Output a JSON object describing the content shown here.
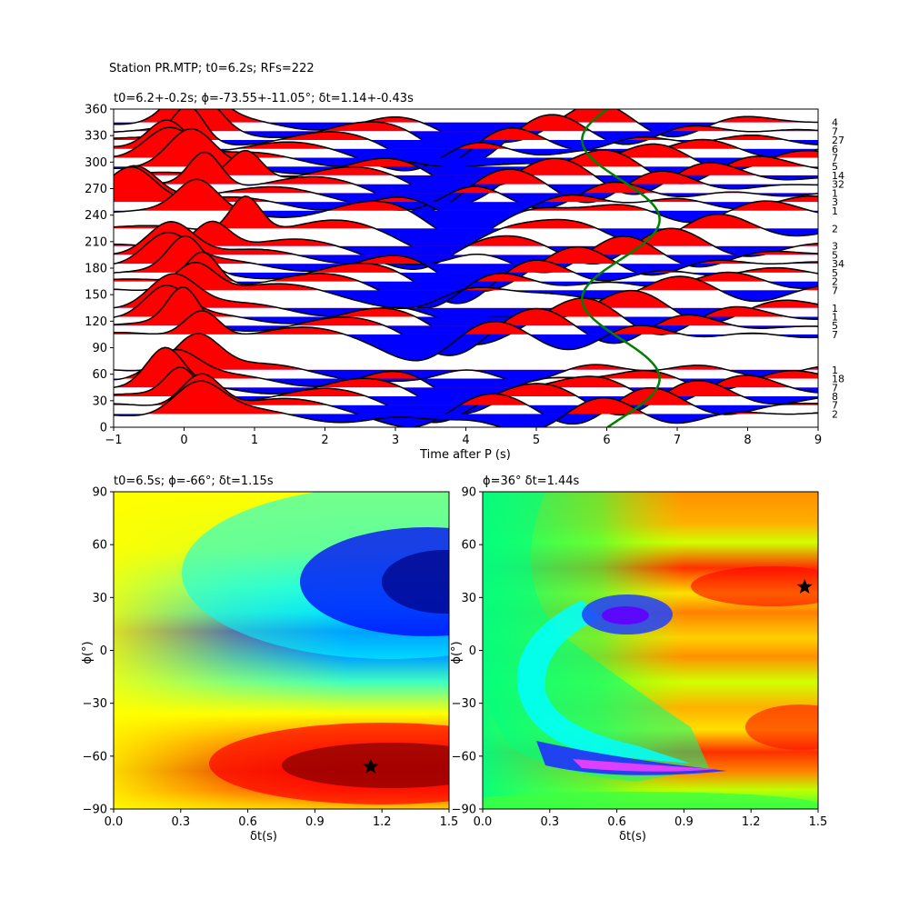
{
  "suptitle": "Station PR.MTP; t0=6.2s; RFs=222",
  "chart_data": [
    {
      "type": "line",
      "title": "t0=6.2+-0.2s; $\\phi$=-73.55+-11.05°; $\\delta$t=1.14+-0.43s",
      "title_display": "t0=6.2+-0.2s; ϕ=-73.55+-11.05°; δt=1.14+-0.43s",
      "xlabel": "Time after P (s)",
      "ylabel": "",
      "xlim": [
        -1,
        9
      ],
      "ylim": [
        0,
        360
      ],
      "xticks": [
        -1,
        0,
        1,
        2,
        3,
        4,
        5,
        6,
        7,
        8,
        9
      ],
      "yticks": [
        0,
        30,
        60,
        90,
        120,
        150,
        180,
        210,
        240,
        270,
        300,
        330,
        360
      ],
      "right_labels": [
        "4",
        "7",
        "27",
        "6",
        "7",
        "5",
        "14",
        "32",
        "1",
        "3",
        "1",
        "2",
        "3",
        "5",
        "34",
        "5",
        "2",
        "7",
        "1",
        "1",
        "5",
        "7",
        "1",
        "18",
        "7",
        "8",
        "7",
        "2"
      ],
      "trace_baz": [
        345,
        335,
        325,
        315,
        305,
        295,
        285,
        275,
        265,
        255,
        245,
        225,
        205,
        195,
        185,
        175,
        165,
        155,
        135,
        125,
        115,
        105,
        65,
        55,
        45,
        35,
        25,
        15
      ],
      "fill_positive": "#ff0000",
      "fill_negative": "#0000ff",
      "model_curve": {
        "color": "#008000",
        "t0": 6.2,
        "amplitude_s": 0.55,
        "period_deg": 180
      }
    },
    {
      "type": "heatmap",
      "title": "t0=6.5s; $\\phi$=-66°; $\\delta$t=1.15s",
      "title_display": "t0=6.5s; ϕ=-66°; δt=1.15s",
      "xlabel": "δt(s)",
      "ylabel": "ϕ(°)",
      "xlim": [
        0.0,
        1.5
      ],
      "ylim": [
        -90,
        90
      ],
      "xticks": [
        "0.0",
        "0.3",
        "0.6",
        "0.9",
        "1.2",
        "1.5"
      ],
      "yticks": [
        "−90",
        "−60",
        "−30",
        "0",
        "30",
        "60",
        "90"
      ],
      "colormap": "jet",
      "best": {
        "dt": 1.15,
        "phi": -66
      }
    },
    {
      "type": "heatmap",
      "title": "$\\phi$=36° $\\delta$t=1.44s",
      "title_display": "ϕ=36° δt=1.44s",
      "xlabel": "δt(s)",
      "ylabel": "ϕ(°)",
      "xlim": [
        0.0,
        1.5
      ],
      "ylim": [
        -90,
        90
      ],
      "xticks": [
        "0.0",
        "0.3",
        "0.6",
        "0.9",
        "1.2",
        "1.5"
      ],
      "yticks": [
        "−90",
        "−60",
        "−30",
        "0",
        "30",
        "60",
        "90"
      ],
      "colormap": "hsv",
      "best": {
        "dt": 1.44,
        "phi": 36
      }
    }
  ]
}
